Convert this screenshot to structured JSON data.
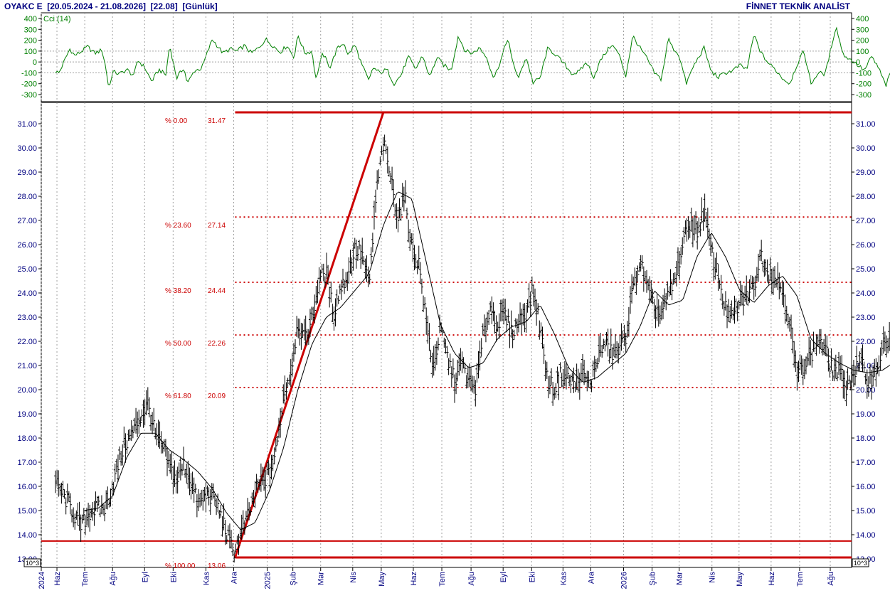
{
  "header": {
    "title": "OYAKC E  [20.05.2024 - 21.08.2026]  [22.08]  [Günlük]",
    "brand": "FİNNET TEKNİK ANALİST"
  },
  "chart_data": [
    {
      "type": "line",
      "name": "cci-panel",
      "legend": "Cci (14)",
      "ylim": [
        -300,
        400
      ],
      "yticks": [
        400,
        300,
        200,
        100,
        0,
        -100,
        -200,
        -300
      ],
      "reference_lines": [
        100,
        0,
        -100
      ],
      "line_color": "#008000",
      "x_anchors": [
        [
          0.02,
          -90
        ],
        [
          0.025,
          -100
        ],
        [
          0.04,
          120
        ],
        [
          0.047,
          60
        ],
        [
          0.055,
          90
        ],
        [
          0.065,
          140
        ],
        [
          0.075,
          80
        ],
        [
          0.085,
          110
        ],
        [
          0.09,
          -30
        ],
        [
          0.095,
          -250
        ],
        [
          0.1,
          -90
        ],
        [
          0.11,
          -110
        ],
        [
          0.12,
          -70
        ],
        [
          0.13,
          -130
        ],
        [
          0.135,
          20
        ],
        [
          0.145,
          -50
        ],
        [
          0.155,
          -180
        ],
        [
          0.165,
          -70
        ],
        [
          0.175,
          -120
        ],
        [
          0.18,
          160
        ],
        [
          0.19,
          -150
        ],
        [
          0.2,
          -50
        ],
        [
          0.205,
          -200
        ],
        [
          0.215,
          -80
        ],
        [
          0.225,
          -60
        ],
        [
          0.24,
          210
        ],
        [
          0.255,
          80
        ],
        [
          0.265,
          120
        ],
        [
          0.275,
          100
        ],
        [
          0.285,
          150
        ],
        [
          0.295,
          80
        ],
        [
          0.305,
          130
        ],
        [
          0.315,
          210
        ],
        [
          0.325,
          150
        ],
        [
          0.335,
          90
        ],
        [
          0.345,
          150
        ],
        [
          0.355,
          40
        ],
        [
          0.36,
          250
        ],
        [
          0.37,
          80
        ],
        [
          0.38,
          100
        ],
        [
          0.385,
          -160
        ],
        [
          0.395,
          80
        ],
        [
          0.405,
          -50
        ],
        [
          0.415,
          120
        ],
        [
          0.425,
          180
        ],
        [
          0.43,
          60
        ],
        [
          0.44,
          160
        ],
        [
          0.45,
          -30
        ],
        [
          0.46,
          -180
        ],
        [
          0.465,
          -50
        ],
        [
          0.475,
          -100
        ],
        [
          0.485,
          -70
        ],
        [
          0.495,
          -200
        ],
        [
          0.505,
          -120
        ],
        [
          0.515,
          50
        ],
        [
          0.525,
          -70
        ],
        [
          0.535,
          60
        ],
        [
          0.545,
          -140
        ],
        [
          0.555,
          40
        ],
        [
          0.565,
          -30
        ],
        [
          0.575,
          -80
        ],
        [
          0.585,
          240
        ],
        [
          0.595,
          100
        ],
        [
          0.605,
          80
        ],
        [
          0.615,
          130
        ],
        [
          0.625,
          40
        ],
        [
          0.635,
          -150
        ],
        [
          0.645,
          20
        ],
        [
          0.655,
          230
        ],
        [
          0.66,
          20
        ],
        [
          0.67,
          -150
        ],
        [
          0.68,
          50
        ],
        [
          0.69,
          -190
        ],
        [
          0.7,
          -150
        ],
        [
          0.71,
          120
        ],
        [
          0.72,
          80
        ],
        [
          0.735,
          -30
        ],
        [
          0.745,
          -110
        ],
        [
          0.755,
          -90
        ],
        [
          0.765,
          0
        ],
        [
          0.775,
          -140
        ],
        [
          0.785,
          20
        ],
        [
          0.8,
          160
        ],
        [
          0.81,
          80
        ],
        [
          0.82,
          -130
        ],
        [
          0.83,
          240
        ],
        [
          0.84,
          130
        ],
        [
          0.85,
          30
        ],
        [
          0.86,
          -100
        ],
        [
          0.87,
          -160
        ],
        [
          0.88,
          220
        ],
        [
          0.885,
          140
        ],
        [
          0.895,
          60
        ],
        [
          0.905,
          -200
        ],
        [
          0.915,
          -40
        ],
        [
          0.93,
          130
        ],
        [
          0.94,
          -90
        ],
        [
          0.95,
          -140
        ],
        [
          0.96,
          -100
        ],
        [
          0.97,
          -80
        ],
        [
          0.98,
          -30
        ],
        [
          0.99,
          -70
        ],
        [
          1.0,
          250
        ],
        [
          1.01,
          80
        ],
        [
          1.02,
          -10
        ],
        [
          1.03,
          -70
        ],
        [
          1.04,
          -150
        ],
        [
          1.05,
          -200
        ],
        [
          1.06,
          -30
        ],
        [
          1.07,
          100
        ],
        [
          1.08,
          -200
        ],
        [
          1.09,
          -100
        ],
        [
          1.1,
          -110
        ],
        [
          1.115,
          330
        ],
        [
          1.125,
          70
        ],
        [
          1.14,
          0
        ],
        [
          1.155,
          -80
        ],
        [
          1.165,
          50
        ],
        [
          1.175,
          -60
        ],
        [
          1.185,
          -220
        ],
        [
          1.195,
          -40
        ],
        [
          1.205,
          160
        ],
        [
          1.215,
          120
        ],
        [
          1.225,
          50
        ],
        [
          1.235,
          -80
        ],
        [
          1.245,
          -30
        ],
        [
          1.255,
          190
        ],
        [
          1.265,
          120
        ],
        [
          1.275,
          110
        ]
      ]
    },
    {
      "type": "ohlc",
      "name": "price-panel",
      "ylim": [
        13,
        31.47
      ],
      "yticks": [
        31.0,
        30.0,
        29.0,
        28.0,
        27.0,
        26.0,
        25.0,
        24.0,
        23.0,
        22.0,
        21.0,
        20.0,
        19.0,
        18.0,
        17.0,
        16.0,
        15.0,
        14.0,
        13.0
      ],
      "scale_label": "10^3",
      "last_price": 22.08,
      "price_anchors": [
        [
          0.02,
          16.1
        ],
        [
          0.04,
          15.2
        ],
        [
          0.055,
          14.3
        ],
        [
          0.07,
          15.0
        ],
        [
          0.09,
          15.1
        ],
        [
          0.1,
          16.0
        ],
        [
          0.115,
          17.6
        ],
        [
          0.13,
          18.3
        ],
        [
          0.14,
          18.9
        ],
        [
          0.15,
          19.4
        ],
        [
          0.16,
          18.1
        ],
        [
          0.17,
          17.6
        ],
        [
          0.18,
          16.8
        ],
        [
          0.19,
          16.2
        ],
        [
          0.2,
          16.9
        ],
        [
          0.21,
          16.2
        ],
        [
          0.22,
          15.2
        ],
        [
          0.235,
          15.7
        ],
        [
          0.245,
          15.3
        ],
        [
          0.255,
          14.5
        ],
        [
          0.265,
          13.6
        ],
        [
          0.27,
          13.3
        ],
        [
          0.28,
          14.0
        ],
        [
          0.29,
          14.7
        ],
        [
          0.3,
          15.7
        ],
        [
          0.31,
          16.2
        ],
        [
          0.32,
          16.5
        ],
        [
          0.33,
          17.5
        ],
        [
          0.34,
          19.8
        ],
        [
          0.35,
          20.7
        ],
        [
          0.36,
          22.8
        ],
        [
          0.37,
          22.0
        ],
        [
          0.38,
          22.9
        ],
        [
          0.39,
          24.6
        ],
        [
          0.4,
          24.8
        ],
        [
          0.41,
          23.1
        ],
        [
          0.42,
          24.2
        ],
        [
          0.43,
          24.7
        ],
        [
          0.44,
          25.8
        ],
        [
          0.45,
          25.6
        ],
        [
          0.46,
          24.2
        ],
        [
          0.47,
          28.1
        ],
        [
          0.48,
          30.2
        ],
        [
          0.49,
          28.8
        ],
        [
          0.5,
          27.1
        ],
        [
          0.51,
          28.0
        ],
        [
          0.52,
          25.8
        ],
        [
          0.53,
          25.2
        ],
        [
          0.54,
          22.8
        ],
        [
          0.55,
          20.9
        ],
        [
          0.56,
          22.5
        ],
        [
          0.57,
          21.3
        ],
        [
          0.58,
          20.3
        ],
        [
          0.59,
          21.1
        ],
        [
          0.6,
          20.3
        ],
        [
          0.61,
          20.1
        ],
        [
          0.62,
          22.2
        ],
        [
          0.63,
          23.4
        ],
        [
          0.64,
          22.7
        ],
        [
          0.65,
          23.1
        ],
        [
          0.66,
          22.3
        ],
        [
          0.67,
          22.8
        ],
        [
          0.68,
          23.2
        ],
        [
          0.69,
          24.1
        ],
        [
          0.7,
          22.6
        ],
        [
          0.71,
          20.4
        ],
        [
          0.72,
          20.0
        ],
        [
          0.73,
          20.7
        ],
        [
          0.74,
          20.4
        ],
        [
          0.75,
          20.2
        ],
        [
          0.76,
          20.6
        ],
        [
          0.77,
          20.1
        ],
        [
          0.78,
          21.3
        ],
        [
          0.79,
          21.9
        ],
        [
          0.8,
          21.5
        ],
        [
          0.81,
          21.6
        ],
        [
          0.82,
          22.2
        ],
        [
          0.83,
          24.1
        ],
        [
          0.84,
          25.3
        ],
        [
          0.85,
          24.2
        ],
        [
          0.86,
          23.3
        ],
        [
          0.87,
          23.1
        ],
        [
          0.88,
          23.9
        ],
        [
          0.89,
          24.6
        ],
        [
          0.9,
          26.0
        ],
        [
          0.91,
          26.9
        ],
        [
          0.92,
          26.5
        ],
        [
          0.93,
          27.4
        ],
        [
          0.94,
          25.7
        ],
        [
          0.95,
          24.7
        ],
        [
          0.96,
          23.3
        ],
        [
          0.97,
          22.9
        ],
        [
          0.98,
          23.6
        ],
        [
          0.99,
          23.9
        ],
        [
          1.0,
          24.3
        ],
        [
          1.01,
          25.6
        ],
        [
          1.02,
          24.9
        ],
        [
          1.03,
          24.6
        ],
        [
          1.04,
          24.1
        ],
        [
          1.05,
          22.8
        ],
        [
          1.06,
          20.5
        ],
        [
          1.07,
          21.1
        ],
        [
          1.08,
          21.4
        ],
        [
          1.09,
          22.1
        ],
        [
          1.1,
          21.6
        ],
        [
          1.11,
          20.8
        ],
        [
          1.12,
          20.7
        ],
        [
          1.13,
          20.1
        ],
        [
          1.14,
          20.7
        ],
        [
          1.15,
          21.1
        ],
        [
          1.16,
          20.3
        ],
        [
          1.17,
          20.7
        ],
        [
          1.18,
          21.6
        ],
        [
          1.19,
          22.08
        ]
      ],
      "ma_anchors": [
        [
          0.06,
          15.0
        ],
        [
          0.08,
          15.1
        ],
        [
          0.1,
          15.6
        ],
        [
          0.12,
          17.2
        ],
        [
          0.14,
          18.2
        ],
        [
          0.16,
          18.2
        ],
        [
          0.18,
          17.5
        ],
        [
          0.2,
          17.1
        ],
        [
          0.22,
          16.6
        ],
        [
          0.24,
          15.9
        ],
        [
          0.26,
          14.9
        ],
        [
          0.28,
          14.2
        ],
        [
          0.3,
          14.5
        ],
        [
          0.32,
          15.8
        ],
        [
          0.34,
          17.6
        ],
        [
          0.36,
          20.0
        ],
        [
          0.38,
          21.9
        ],
        [
          0.4,
          23.0
        ],
        [
          0.42,
          23.4
        ],
        [
          0.44,
          24.1
        ],
        [
          0.46,
          24.8
        ],
        [
          0.48,
          26.8
        ],
        [
          0.5,
          28.2
        ],
        [
          0.52,
          27.9
        ],
        [
          0.54,
          25.3
        ],
        [
          0.56,
          22.7
        ],
        [
          0.58,
          21.5
        ],
        [
          0.6,
          20.9
        ],
        [
          0.62,
          21.1
        ],
        [
          0.64,
          22.1
        ],
        [
          0.66,
          22.6
        ],
        [
          0.68,
          22.8
        ],
        [
          0.7,
          23.5
        ],
        [
          0.72,
          22.3
        ],
        [
          0.74,
          20.9
        ],
        [
          0.76,
          20.3
        ],
        [
          0.78,
          20.5
        ],
        [
          0.8,
          21.0
        ],
        [
          0.82,
          21.5
        ],
        [
          0.84,
          22.6
        ],
        [
          0.86,
          24.1
        ],
        [
          0.88,
          23.5
        ],
        [
          0.9,
          23.7
        ],
        [
          0.92,
          25.5
        ],
        [
          0.94,
          26.5
        ],
        [
          0.96,
          25.5
        ],
        [
          0.98,
          24.1
        ],
        [
          1.0,
          23.6
        ],
        [
          1.02,
          24.3
        ],
        [
          1.04,
          24.7
        ],
        [
          1.06,
          23.9
        ],
        [
          1.08,
          22.1
        ],
        [
          1.1,
          21.5
        ],
        [
          1.12,
          21.1
        ],
        [
          1.14,
          20.8
        ],
        [
          1.16,
          20.7
        ],
        [
          1.18,
          20.8
        ],
        [
          1.2,
          21.2
        ]
      ],
      "fibonacci": {
        "color": "#cc0000",
        "trend_start": {
          "x": 0.272,
          "price": 13.06
        },
        "trend_end": {
          "x": 0.48,
          "price": 31.47
        },
        "levels": [
          {
            "label": "% 0.00",
            "value": "31.47",
            "price": 31.47
          },
          {
            "label": "% 23.60",
            "value": "27.14",
            "price": 27.14
          },
          {
            "label": "% 38.20",
            "value": "24.44",
            "price": 24.44
          },
          {
            "label": "% 50.00",
            "value": "22.26",
            "price": 22.26
          },
          {
            "label": "% 61.80",
            "value": "20.09",
            "price": 20.09
          },
          {
            "label": "% 100.00",
            "value": "13.06",
            "price": 13.06
          }
        ],
        "support_line": 13.74
      },
      "x_tick_labels": [
        {
          "label": "2024",
          "x": 0.0
        },
        {
          "label": "Haz",
          "x": 0.022
        },
        {
          "label": "Tem",
          "x": 0.061
        },
        {
          "label": "Ağu",
          "x": 0.1
        },
        {
          "label": "Eyl",
          "x": 0.145
        },
        {
          "label": "Eki",
          "x": 0.185
        },
        {
          "label": "Kas",
          "x": 0.231
        },
        {
          "label": "Ara",
          "x": 0.27
        },
        {
          "label": "2025",
          "x": 0.317
        },
        {
          "label": "Şub",
          "x": 0.353
        },
        {
          "label": "Mar",
          "x": 0.392
        },
        {
          "label": "Nis",
          "x": 0.437
        },
        {
          "label": "May",
          "x": 0.477
        },
        {
          "label": "Haz",
          "x": 0.522
        },
        {
          "label": "Tem",
          "x": 0.562
        },
        {
          "label": "Ağu",
          "x": 0.603
        },
        {
          "label": "Eyl",
          "x": 0.648
        },
        {
          "label": "Eki",
          "x": 0.688
        },
        {
          "label": "Kas",
          "x": 0.732
        },
        {
          "label": "Ara",
          "x": 0.771
        },
        {
          "label": "2026",
          "x": 0.817
        },
        {
          "label": "Şub",
          "x": 0.857
        },
        {
          "label": "Mar",
          "x": 0.895
        },
        {
          "label": "Nis",
          "x": 0.941
        },
        {
          "label": "May",
          "x": 0.979
        },
        {
          "label": "Haz",
          "x": 1.024
        },
        {
          "label": "Tem",
          "x": 1.064
        },
        {
          "label": "Ağu",
          "x": 1.107
        }
      ]
    }
  ],
  "colors": {
    "axis": "#000000",
    "grid": "#a0a0a0",
    "price_bars": "#000000",
    "ma_line": "#000000",
    "label_text": "#000080"
  }
}
